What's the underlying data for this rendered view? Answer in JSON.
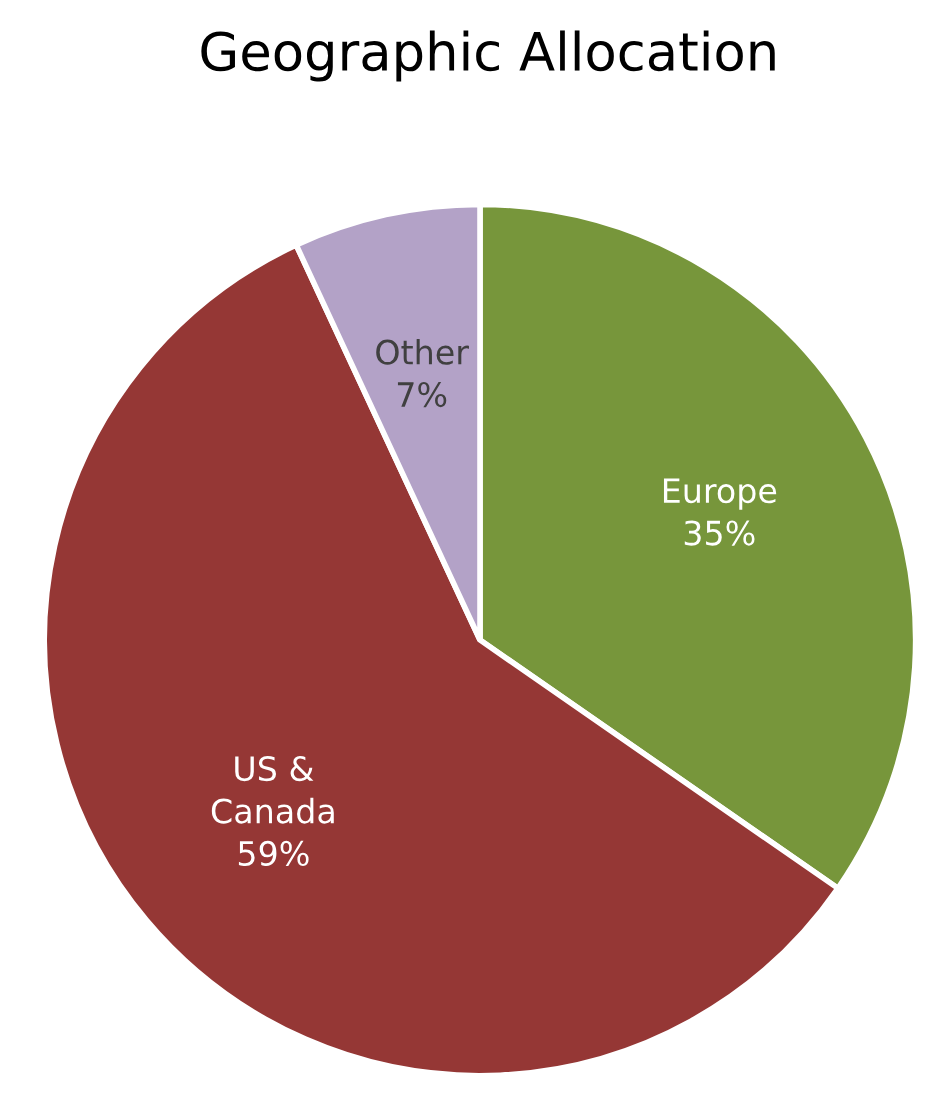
{
  "chart_data": {
    "type": "pie",
    "title": "Geographic Allocation",
    "categories": [
      "Europe",
      "US & Canada",
      "Other"
    ],
    "values": [
      35,
      59,
      7
    ],
    "colors": [
      "#77963b",
      "#953735",
      "#b3a2c7"
    ],
    "value_labels": [
      "35%",
      "59%",
      "7%"
    ]
  }
}
